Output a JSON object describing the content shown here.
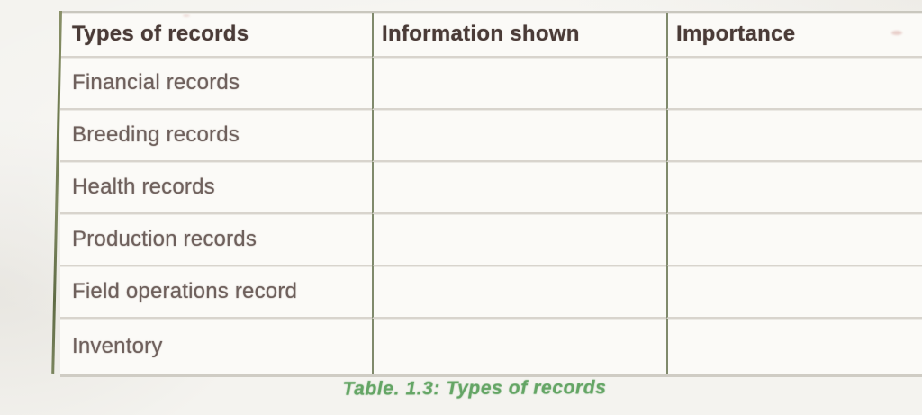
{
  "document": {
    "caption": "Table. 1.3: Types of records"
  },
  "table": {
    "headers": [
      "Types of records",
      "Information shown",
      "Importance"
    ],
    "rows": [
      {
        "type": "Financial records",
        "information_shown": "",
        "importance": ""
      },
      {
        "type": "Breeding records",
        "information_shown": "",
        "importance": ""
      },
      {
        "type": "Health records",
        "information_shown": "",
        "importance": ""
      },
      {
        "type": "Production records",
        "information_shown": "",
        "importance": ""
      },
      {
        "type": "Field operations record",
        "information_shown": "",
        "importance": ""
      },
      {
        "type": "Inventory",
        "information_shown": "",
        "importance": ""
      }
    ]
  },
  "colors": {
    "caption_green": "#64a565",
    "header_text": "#4a3b37",
    "body_text": "#6e605c",
    "horizontal_rule": "#d8d4cd",
    "vertical_rule_olive": "#6a7554",
    "paper": "#f4f3ef"
  }
}
